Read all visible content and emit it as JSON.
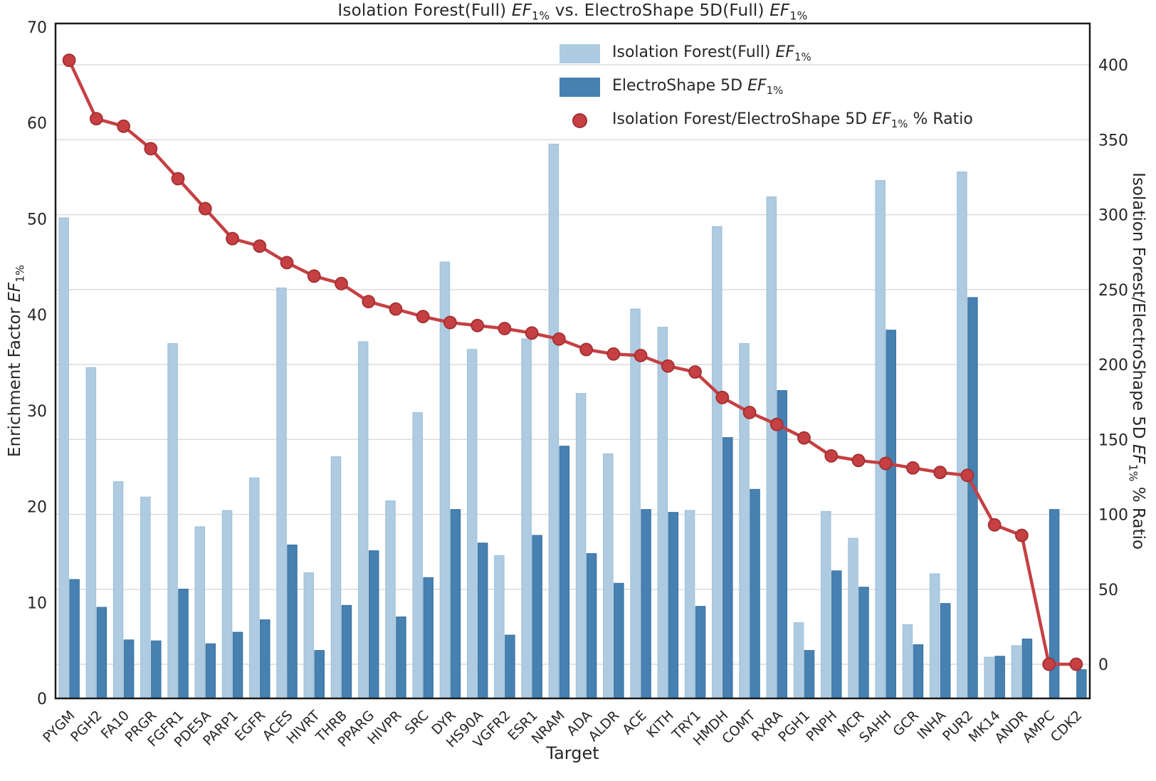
{
  "title": "Isolation Forest(Full) {EF1} vs. ElectroShape 5D(Full) {EF1}",
  "axes": {
    "x_label": "Target",
    "y_left_label": "Enrichment Factor {EF1}",
    "y_right_label": "Isolation Forest/ElectroShape 5D {EF1} % Ratio",
    "y_left_ticks": [
      0,
      10,
      20,
      30,
      40,
      50,
      60,
      70
    ],
    "y_right_ticks": [
      0,
      50,
      100,
      150,
      200,
      250,
      300,
      350,
      400
    ]
  },
  "legend": {
    "items": [
      {
        "kind": "bar",
        "label": "Isolation Forest(Full) {EF1}",
        "color": "#aecbe1"
      },
      {
        "kind": "bar",
        "label": "ElectroShape 5D {EF1}",
        "color": "#4681b1"
      },
      {
        "kind": "marker",
        "label": "Isolation Forest/ElectroShape 5D {EF1} % Ratio",
        "color": "#c64043"
      }
    ]
  },
  "colors": {
    "light_bar": "#aecbe1",
    "light_bar_edge": "#9cc0d9",
    "dark_bar": "#4681b1",
    "dark_bar_edge": "#3a70a0",
    "ratio_line": "#c64043",
    "ratio_marker_edge": "#a12f31",
    "gridline": "#dcdcdc",
    "frame": "#1a1a1a",
    "text": "#262626"
  },
  "chart_data": {
    "type": "bar",
    "subtype": "grouped bars + line on secondary axis",
    "title": "Isolation Forest(Full) EF1% vs. ElectroShape 5D(Full) EF1%",
    "xlabel": "Target",
    "ylabel_left": "Enrichment Factor EF1%",
    "ylabel_right": "Isolation Forest/ElectroShape 5D EF1% % Ratio",
    "ylim_left": [
      0,
      70
    ],
    "right_axis_ticks": [
      0,
      50,
      100,
      150,
      200,
      250,
      300,
      350,
      400
    ],
    "grid": "horizontal gridlines aligned to right-axis ticks",
    "legend_position": "upper center-right inside plot",
    "x_tick_rotation": 45,
    "categories": [
      "PYGM",
      "PGH2",
      "FA10",
      "PRGR",
      "FGFR1",
      "PDE5A",
      "PARP1",
      "EGFR",
      "ACES",
      "HIVRT",
      "THRB",
      "PPARG",
      "HIVPR",
      "SRC",
      "DYR",
      "HS90A",
      "VGFR2",
      "ESR1",
      "NRAM",
      "ADA",
      "ALDR",
      "ACE",
      "KITH",
      "TRY1",
      "HMDH",
      "COMT",
      "RXRA",
      "PGH1",
      "PNPH",
      "MCR",
      "SAHH",
      "GCR",
      "INHA",
      "PUR2",
      "MK14",
      "ANDR",
      "AMPC",
      "CDK2"
    ],
    "series": [
      {
        "name": "Isolation Forest(Full) EF1%",
        "type": "bar",
        "axis": "left",
        "values": [
          50.1,
          34.5,
          22.6,
          21.0,
          37.0,
          17.9,
          19.6,
          23.0,
          42.8,
          13.1,
          25.2,
          37.2,
          20.6,
          29.8,
          45.5,
          36.4,
          14.9,
          37.5,
          57.8,
          31.8,
          25.5,
          40.6,
          38.7,
          19.6,
          49.2,
          37.0,
          52.3,
          7.9,
          19.5,
          16.7,
          54.0,
          7.7,
          13.0,
          54.9,
          4.3,
          5.5,
          0,
          0
        ]
      },
      {
        "name": "ElectroShape 5D EF1%",
        "type": "bar",
        "axis": "left",
        "values": [
          12.4,
          9.5,
          6.1,
          6.0,
          11.4,
          5.7,
          6.9,
          8.2,
          16.0,
          5.0,
          9.7,
          15.4,
          8.5,
          12.6,
          19.7,
          16.2,
          6.6,
          17.0,
          26.3,
          15.1,
          12.0,
          19.7,
          19.4,
          9.6,
          27.2,
          21.8,
          32.1,
          5.0,
          13.3,
          11.6,
          38.4,
          5.6,
          9.9,
          41.8,
          4.4,
          6.2,
          19.7,
          3.0
        ]
      },
      {
        "name": "Isolation Forest/ElectroShape 5D EF1% % Ratio",
        "type": "line",
        "axis": "right",
        "values": [
          403,
          364,
          359,
          344,
          324,
          304,
          284,
          279,
          268,
          259,
          254,
          242,
          237,
          232,
          228,
          226,
          224,
          221,
          217,
          210,
          207,
          206,
          199,
          195,
          178,
          168,
          160,
          151,
          139,
          136,
          134,
          131,
          128,
          126,
          93,
          86,
          0,
          0
        ]
      }
    ]
  }
}
